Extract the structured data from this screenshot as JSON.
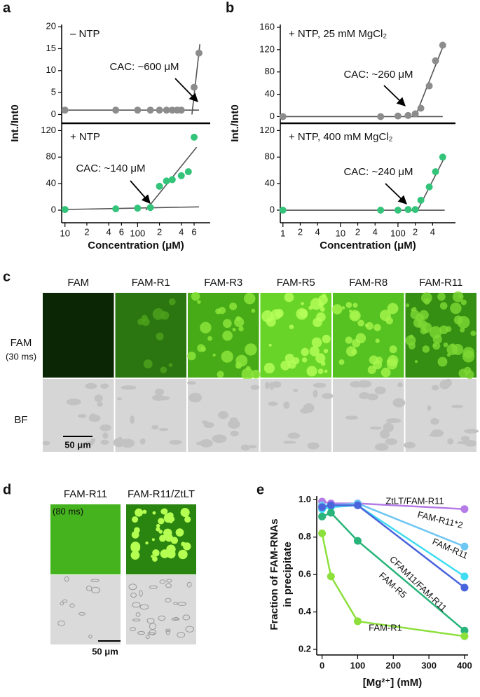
{
  "figure": {
    "panel_labels": [
      "a",
      "b",
      "c",
      "d",
      "e"
    ]
  },
  "chart_data": [
    {
      "type": "scatter",
      "label": "– NTP",
      "annotation": "CAC: ~600 μM",
      "y_label": "Int./Int0",
      "log_x": true,
      "xlim": [
        9,
        1000
      ],
      "ylim": [
        -2,
        20.5
      ],
      "yticks": [
        0,
        5,
        10,
        15,
        20
      ],
      "color": "#8c8c8c",
      "x": [
        10,
        50,
        100,
        150,
        200,
        250,
        300,
        350,
        400,
        600,
        700
      ],
      "values": [
        1,
        1,
        1,
        1,
        1,
        1,
        1,
        1,
        1,
        6.2,
        14
      ],
      "fit_lines": [
        {
          "x": [
            10,
            700
          ],
          "values": [
            1,
            1
          ]
        },
        {
          "x": [
            560,
            720
          ],
          "values": [
            0,
            16
          ]
        }
      ]
    },
    {
      "type": "scatter",
      "label": "+ NTP",
      "annotation": "CAC: ~140 μM",
      "x_label": "Concentration (μM)",
      "log_x": true,
      "xlim": [
        9,
        1000
      ],
      "ylim": [
        -19,
        131
      ],
      "yticks": [
        0,
        40,
        80,
        120
      ],
      "color": "#33c47a",
      "xticks": [
        10,
        {
          "value": 20,
          "label": "2"
        },
        {
          "value": 40,
          "label": "4"
        },
        {
          "value": 60,
          "label": "6"
        },
        100,
        {
          "value": 200,
          "label": "2"
        },
        {
          "value": 400,
          "label": "4"
        },
        {
          "value": 600,
          "label": "6"
        }
      ],
      "x": [
        10,
        50,
        100,
        150,
        200,
        250,
        300,
        400,
        500,
        600
      ],
      "values": [
        1,
        2,
        3,
        4,
        36,
        44,
        46,
        52,
        58,
        110
      ],
      "fit_lines": [
        {
          "x": [
            10,
            700
          ],
          "values": [
            1,
            5
          ]
        },
        {
          "x": [
            130,
            650
          ],
          "values": [
            0,
            95
          ]
        }
      ]
    },
    {
      "type": "scatter",
      "label": "+ NTP, 25 mM MgCl₂",
      "annotation": "CAC: ~260 μM",
      "y_label": "Int./Int0",
      "log_x": true,
      "xlim": [
        0.9,
        1000
      ],
      "ylim": [
        -12,
        165
      ],
      "yticks": [
        0,
        40,
        80,
        120,
        160
      ],
      "color": "#8c8c8c",
      "x": [
        1,
        50,
        100,
        150,
        200,
        250,
        350,
        450,
        600
      ],
      "values": [
        0,
        0,
        1,
        2,
        5,
        15,
        55,
        100,
        128
      ],
      "fit_lines": [
        {
          "x": [
            1,
            600
          ],
          "values": [
            0,
            0
          ]
        },
        {
          "x": [
            200,
            620
          ],
          "values": [
            0,
            128
          ]
        }
      ]
    },
    {
      "type": "scatter",
      "label": "+ NTP, 400 mM MgCl₂",
      "annotation": "CAC: ~240 μM",
      "x_label": "Concentration (μM)",
      "log_x": true,
      "xlim": [
        0.9,
        1000
      ],
      "ylim": [
        -19,
        131
      ],
      "yticks": [
        0,
        40,
        80,
        120
      ],
      "color": "#33c47a",
      "xticks": [
        1,
        {
          "value": 2,
          "label": "2"
        },
        {
          "value": 4,
          "label": "4"
        },
        10,
        {
          "value": 20,
          "label": "2"
        },
        {
          "value": 40,
          "label": "4"
        },
        100,
        {
          "value": 200,
          "label": "2"
        },
        {
          "value": 400,
          "label": "4"
        }
      ],
      "x": [
        1,
        50,
        100,
        150,
        200,
        250,
        350,
        450,
        600
      ],
      "values": [
        0,
        0,
        0,
        1,
        1,
        15,
        35,
        58,
        80
      ],
      "fit_lines": [
        {
          "x": [
            1,
            650
          ],
          "values": [
            0,
            0
          ]
        },
        {
          "x": [
            220,
            650
          ],
          "values": [
            0,
            80
          ]
        }
      ]
    },
    {
      "type": "line",
      "x_label": "[Mg²⁺] (mM)",
      "y_label": [
        "Fraction of FAM-RNAs",
        "in precipitate"
      ],
      "xlim": [
        -15,
        410
      ],
      "ylim": [
        0.17,
        1.02
      ],
      "xticks": [
        0,
        100,
        200,
        300,
        400
      ],
      "yticks": [
        0.2,
        0.4,
        0.6,
        0.8,
        {
          "value": 1,
          "label": "1.0"
        }
      ],
      "x": [
        0,
        25,
        100,
        400
      ],
      "series": [
        {
          "name": "ZtLT/FAM-R11",
          "color": "#b57be6",
          "values": [
            0.99,
            0.98,
            0.98,
            0.95
          ]
        },
        {
          "name": "FAM-R11*2",
          "color": "#6ec6f2",
          "values": [
            0.97,
            0.97,
            0.98,
            0.75
          ]
        },
        {
          "name": "FAM-R11",
          "color": "#3fdcf2",
          "values": [
            0.95,
            0.96,
            0.97,
            0.59
          ]
        },
        {
          "name": "CFAM11/FAM-R11",
          "color": "#4a64dc",
          "values": [
            0.96,
            0.97,
            0.97,
            0.53
          ]
        },
        {
          "name": "FAM-R5",
          "color": "#28b47a",
          "values": [
            0.91,
            0.93,
            0.78,
            0.3
          ]
        },
        {
          "name": "FAM-R1",
          "color": "#8de03c",
          "values": [
            0.82,
            0.59,
            0.35,
            0.27
          ]
        }
      ]
    }
  ],
  "micrographs": {
    "panel_c": {
      "columns": [
        "FAM",
        "FAM-R1",
        "FAM-R3",
        "FAM-R5",
        "FAM-R8",
        "FAM-R11"
      ],
      "rows": [
        {
          "label": "FAM",
          "exposure": "(30 ms)"
        },
        {
          "label": "BF"
        }
      ],
      "scale_bar": "50 μm"
    },
    "panel_d": {
      "columns": [
        "FAM-R11",
        "FAM-R11/ZtLT"
      ],
      "exposure": "(80 ms)",
      "scale_bar": "50 μm"
    }
  }
}
